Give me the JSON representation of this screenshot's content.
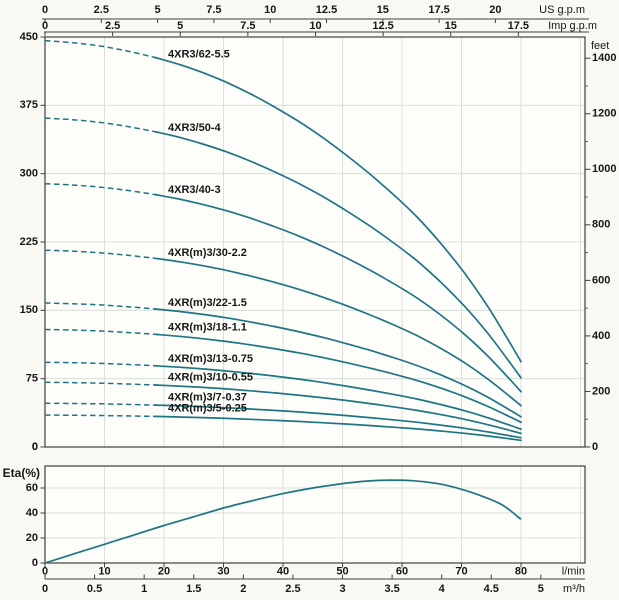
{
  "meta": {
    "bg_color": "#f9f9f4",
    "plot_bg_color": "#fdfdf9",
    "curve_color": "#1f7585",
    "grid_color": "#dadfda",
    "axis_color": "#3f3f3f",
    "text_color": "#161616"
  },
  "labels": {
    "us_gpm": "US g.p.m",
    "imp_gpm": "Imp g.p.m",
    "feet": "feet",
    "lmin": "l/min",
    "m3h": "m³/h",
    "eta": "Eta(%)"
  },
  "chart_data": [
    {
      "type": "line",
      "title": "Pump head curves (head vs flow)",
      "x_unit": "l/min",
      "x_axis_lmin_ticks": [
        0,
        10,
        20,
        30,
        40,
        50,
        60,
        70,
        80
      ],
      "x_axis_m3h_ticks": [
        0,
        0.5,
        1,
        1.5,
        2,
        2.5,
        3,
        3.5,
        4,
        4.5,
        5
      ],
      "top_axis_us_gpm_ticks": [
        0,
        2.5,
        5,
        7.5,
        10,
        12.5,
        15,
        17.5,
        20
      ],
      "top_axis_imp_gpm_ticks": [
        0,
        2.5,
        5,
        7.5,
        10,
        12.5,
        15,
        17.5
      ],
      "y_left_ticks_m": [
        0,
        75,
        150,
        225,
        300,
        375,
        450
      ],
      "y_left_range_m": [
        0,
        450
      ],
      "y_right_ticks_feet": [
        0,
        200,
        400,
        600,
        800,
        1000,
        1200,
        1400
      ],
      "grid": "on",
      "q_max_lmin": 80,
      "dashed_until_lmin": 18.5,
      "shape_profile": {
        "t": [
          0,
          0.05,
          0.1,
          0.15,
          0.2,
          0.25,
          0.3,
          0.35,
          0.4,
          0.45,
          0.5,
          0.55,
          0.6,
          0.65,
          0.7,
          0.75,
          0.8,
          0.85,
          0.9,
          0.95,
          1
        ],
        "f": [
          1.0,
          0.996,
          0.99,
          0.98,
          0.968,
          0.953,
          0.935,
          0.913,
          0.888,
          0.858,
          0.825,
          0.789,
          0.748,
          0.703,
          0.655,
          0.602,
          0.545,
          0.475,
          0.4,
          0.31,
          0.21
        ]
      },
      "series": [
        {
          "label": "4XR3/62-5.5",
          "shutoff_head_m": 446,
          "head_at_80lmin_m": 93.7
        },
        {
          "label": "4XR3/50-4",
          "shutoff_head_m": 361,
          "head_at_80lmin_m": 75.8
        },
        {
          "label": "4XR3/40-3",
          "shutoff_head_m": 289,
          "head_at_80lmin_m": 60.7
        },
        {
          "label": "4XR(m)3/30-2.2",
          "shutoff_head_m": 216,
          "head_at_80lmin_m": 45.4
        },
        {
          "label": "4XR(m)3/22-1.5",
          "shutoff_head_m": 158,
          "head_at_80lmin_m": 33.2
        },
        {
          "label": "4XR(m)3/18-1.1",
          "shutoff_head_m": 129,
          "head_at_80lmin_m": 27.1
        },
        {
          "label": "4XR(m)3/13-0.75",
          "shutoff_head_m": 93,
          "head_at_80lmin_m": 19.5
        },
        {
          "label": "4XR(m)3/10-0.55",
          "shutoff_head_m": 71,
          "head_at_80lmin_m": 14.9
        },
        {
          "label": "4XR(m)3/7-0.37",
          "shutoff_head_m": 48,
          "head_at_80lmin_m": 10.1
        },
        {
          "label": "4XR(m)3/5-0.25",
          "shutoff_head_m": 35,
          "head_at_80lmin_m": 7.4
        }
      ]
    },
    {
      "type": "line",
      "title": "Eta(%) efficiency curve",
      "x_unit": "l/min",
      "ylabel": "Eta(%)",
      "y_ticks": [
        0,
        20,
        40,
        60
      ],
      "y_max_percent": 77.6,
      "grid": "on",
      "points": [
        [
          0,
          0
        ],
        [
          5,
          7.5
        ],
        [
          10,
          15
        ],
        [
          15,
          22.5
        ],
        [
          20,
          30
        ],
        [
          25,
          37
        ],
        [
          30,
          44
        ],
        [
          35,
          50
        ],
        [
          40,
          55.5
        ],
        [
          45,
          60
        ],
        [
          50,
          63.5
        ],
        [
          54,
          65.5
        ],
        [
          58,
          66.3
        ],
        [
          62,
          65.8
        ],
        [
          66,
          63.5
        ],
        [
          70,
          59
        ],
        [
          74,
          52.5
        ],
        [
          77,
          46
        ],
        [
          80,
          35
        ]
      ]
    }
  ]
}
